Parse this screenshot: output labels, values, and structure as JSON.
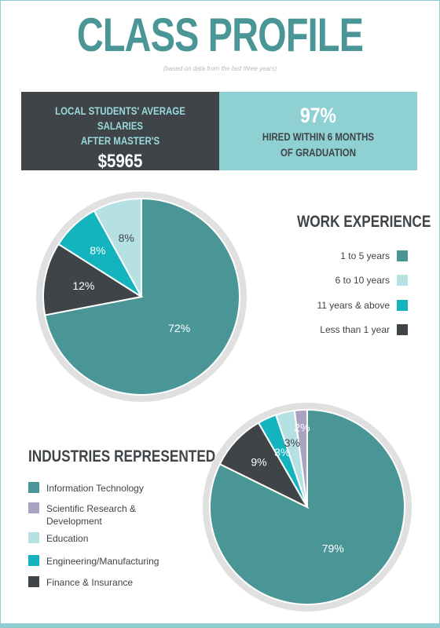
{
  "header": {
    "title": "CLASS PROFILE",
    "subtitle": "(based on data from the last three years)"
  },
  "banner": {
    "left_label_line1": "LOCAL STUDENTS' AVERAGE SALARIES",
    "left_label_line2": "AFTER MASTER'S",
    "left_value": "$5965",
    "right_value": "97%",
    "right_label_line1": "HIRED WITHIN 6 MONTHS",
    "right_label_line2": "OF GRADUATION"
  },
  "colors": {
    "teal_dark": "#4a9697",
    "teal_light": "#b5e1e3",
    "teal_bright": "#13b4bd",
    "charcoal": "#3f4448",
    "lavender": "#a9a2c0",
    "ring": "#e0e0e0"
  },
  "chart_data": [
    {
      "type": "pie",
      "title": "WORK EXPERIENCE",
      "slices": [
        {
          "label": "1 to 5 years",
          "value": 72,
          "text": "72%",
          "color": "#4a9697"
        },
        {
          "label": "Less than 1 year",
          "value": 12,
          "text": "12%",
          "color": "#3f4448"
        },
        {
          "label": "11 years & above",
          "value": 8,
          "text": "8%",
          "color": "#13b4bd"
        },
        {
          "label": "6 to 10 years",
          "value": 8,
          "text": "8%",
          "color": "#b5e1e3"
        }
      ],
      "legend": [
        {
          "label": "1 to 5 years",
          "color": "#4a9697"
        },
        {
          "label": "6 to 10 years",
          "color": "#b5e1e3"
        },
        {
          "label": "11 years & above",
          "color": "#13b4bd"
        },
        {
          "label": "Less than 1 year",
          "color": "#3f4448"
        }
      ],
      "legend_position": "right"
    },
    {
      "type": "pie",
      "title": "INDUSTRIES REPRESENTED",
      "slices": [
        {
          "label": "Information Technology",
          "value": 79,
          "text": "79%",
          "color": "#4a9697"
        },
        {
          "label": "Finance & Insurance",
          "value": 9,
          "text": "9%",
          "color": "#3f4448"
        },
        {
          "label": "Engineering/Manufacturing",
          "value": 3,
          "text": "3%",
          "color": "#13b4bd"
        },
        {
          "label": "Education",
          "value": 3,
          "text": "3%",
          "color": "#b5e1e3"
        },
        {
          "label": "Scientific Research & Development",
          "value": 2,
          "text": "2%",
          "color": "#a9a2c0"
        }
      ],
      "legend": [
        {
          "label_line1": "Information Technology",
          "label_line2": "",
          "color": "#4a9697"
        },
        {
          "label_line1": "Scientific Research &",
          "label_line2": "Development",
          "color": "#a9a2c0"
        },
        {
          "label_line1": "Education",
          "label_line2": "",
          "color": "#b5e1e3"
        },
        {
          "label_line1": "Engineering/Manufacturing",
          "label_line2": "",
          "color": "#13b4bd"
        },
        {
          "label_line1": "Finance & Insurance",
          "label_line2": "",
          "color": "#3f4448"
        }
      ],
      "legend_position": "left"
    }
  ]
}
